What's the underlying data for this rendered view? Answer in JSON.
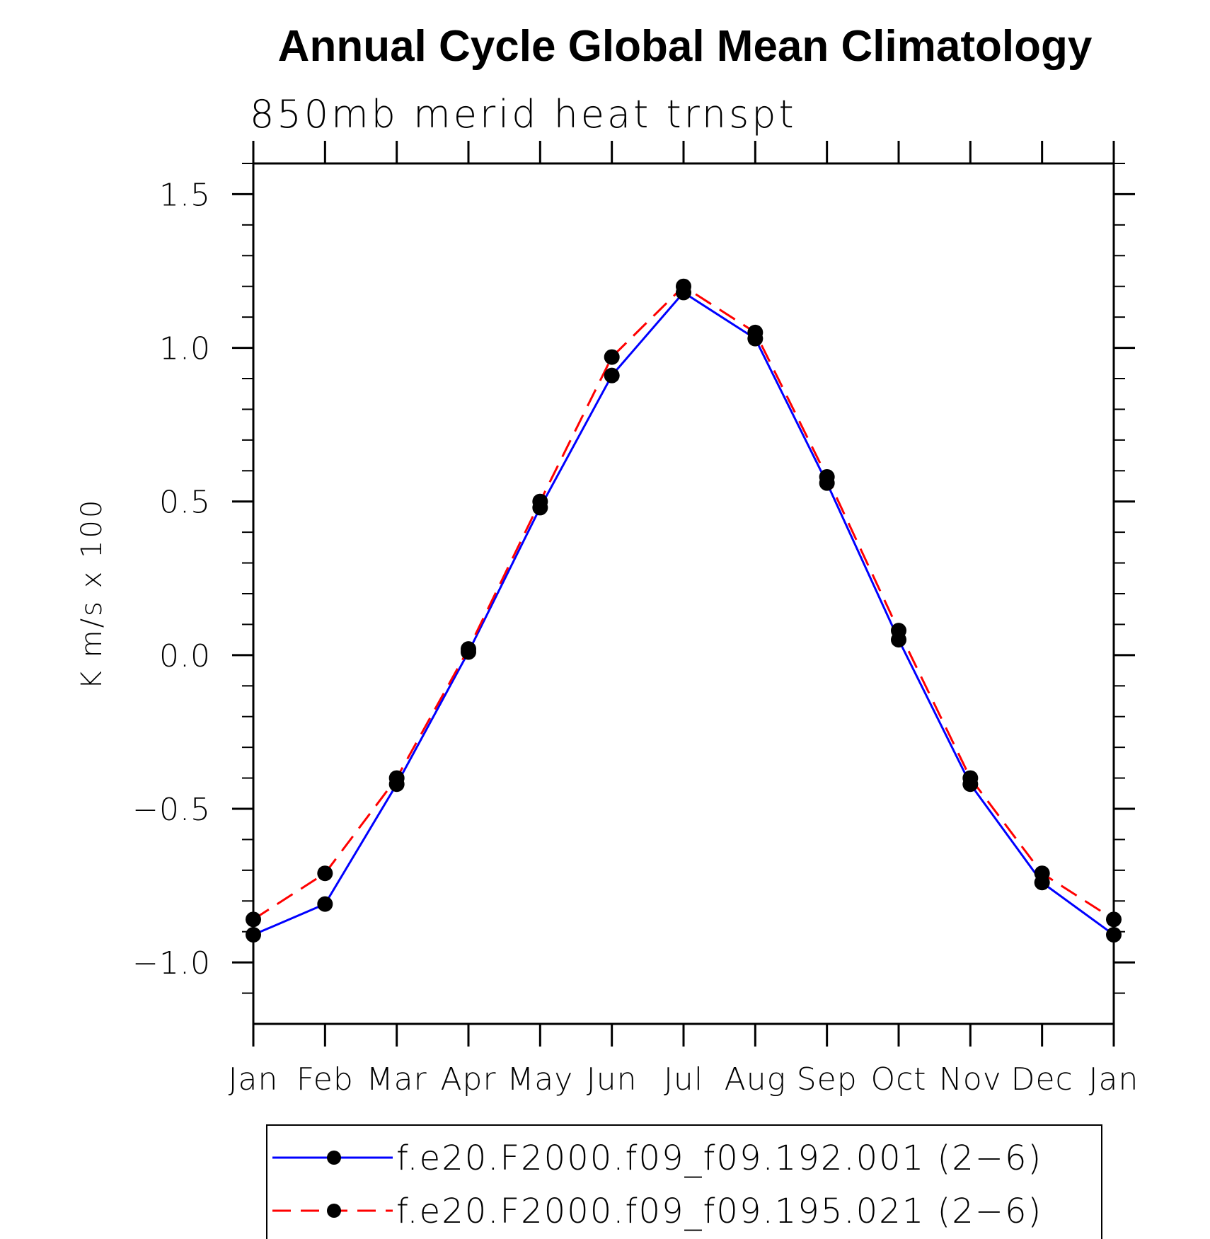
{
  "chart_data": {
    "type": "line",
    "title": "Annual Cycle Global Mean Climatology",
    "subtitle": "850mb merid heat trnspt",
    "xlabel": "",
    "ylabel": "K m/s x 100",
    "categories": [
      "Jan",
      "Feb",
      "Mar",
      "Apr",
      "May",
      "Jun",
      "Jul",
      "Aug",
      "Sep",
      "Oct",
      "Nov",
      "Dec",
      "Jan"
    ],
    "ylim": [
      -1.2,
      1.6
    ],
    "yticks": [
      {
        "value": 1.5,
        "label": "1.5"
      },
      {
        "value": 1.0,
        "label": "1.0"
      },
      {
        "value": 0.5,
        "label": "0.5"
      },
      {
        "value": 0.0,
        "label": "0.0"
      },
      {
        "value": -0.5,
        "label": "−0.5"
      },
      {
        "value": -1.0,
        "label": "−1.0"
      }
    ],
    "minor_tick_step": 0.1,
    "series": [
      {
        "name": "f.e20.F2000.f09_f09.192.001 (2−6)",
        "color": "#0000ff",
        "dash": "solid",
        "values": [
          -0.91,
          -0.81,
          -0.42,
          0.01,
          0.48,
          0.91,
          1.18,
          1.03,
          0.56,
          0.05,
          -0.42,
          -0.74,
          -0.91
        ]
      },
      {
        "name": "f.e20.F2000.f09_f09.195.021 (2−6)",
        "color": "#ff0000",
        "dash": "dashed",
        "values": [
          -0.86,
          -0.71,
          -0.4,
          0.02,
          0.5,
          0.97,
          1.2,
          1.05,
          0.58,
          0.08,
          -0.4,
          -0.71,
          -0.86
        ]
      }
    ],
    "marker_color": "#000000",
    "legend_position": "bottom"
  }
}
